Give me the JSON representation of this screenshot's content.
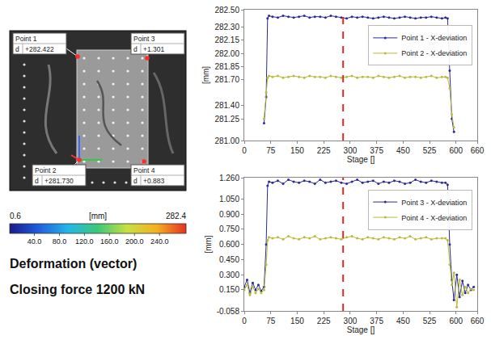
{
  "image": {
    "points": [
      {
        "name": "Point 1",
        "label": "d",
        "value": "+282.422"
      },
      {
        "name": "Point 2",
        "label": "d",
        "value": "+281.730"
      },
      {
        "name": "Point 3",
        "label": "d",
        "value": "+1.301"
      },
      {
        "name": "Point 4",
        "label": "d",
        "value": "+0.883"
      }
    ]
  },
  "colorbar": {
    "min": 0.6,
    "max": 282.4,
    "unit": "[mm]",
    "colors": [
      "#1a1a8c",
      "#1f5fe0",
      "#22b8e8",
      "#3cc878",
      "#c8e040",
      "#f5b020",
      "#e83020"
    ],
    "ticks": [
      {
        "value": 40,
        "label": "40.0"
      },
      {
        "value": 80,
        "label": "80.0"
      },
      {
        "value": 120,
        "label": "120.0"
      },
      {
        "value": 160,
        "label": "160.0"
      },
      {
        "value": 200,
        "label": "200.0"
      },
      {
        "value": 240,
        "label": "240.0"
      }
    ]
  },
  "captions": [
    "Deformation (vector)",
    "Closing force 1200 kN"
  ],
  "chart_data": [
    {
      "type": "line",
      "xlabel": "Stage []",
      "ylabel": "[mm]",
      "grid": false,
      "legend": "right",
      "x": [
        0,
        8,
        16,
        24,
        32,
        40,
        48,
        56,
        62,
        66,
        70,
        80,
        95,
        110,
        125,
        140,
        155,
        170,
        185,
        200,
        215,
        230,
        245,
        260,
        275,
        290,
        305,
        320,
        335,
        350,
        365,
        380,
        395,
        410,
        425,
        440,
        455,
        470,
        485,
        500,
        515,
        530,
        545,
        560,
        570,
        576,
        582,
        588,
        594,
        602,
        610,
        618,
        626,
        634,
        642,
        650
      ],
      "xlim": [
        0,
        660
      ],
      "xticks": [
        0,
        75,
        150,
        225,
        300,
        375,
        450,
        525,
        600,
        660
      ],
      "ylim": [
        281,
        282.5
      ],
      "yticks": [
        {
          "value": 281,
          "label": "281.00"
        },
        {
          "value": 281.25,
          "label": "281.25"
        },
        {
          "value": 281.4,
          "label": "281.40"
        },
        {
          "value": 281.7,
          "label": "281.70"
        },
        {
          "value": 281.85,
          "label": "281.85"
        },
        {
          "value": 282,
          "label": "282.00"
        },
        {
          "value": 282.15,
          "label": "282.15"
        },
        {
          "value": 282.3,
          "label": "282.30"
        },
        {
          "value": 282.5,
          "label": "282.50"
        }
      ],
      "vline": {
        "x": 280,
        "color": "#e8281e",
        "line_style": "dash"
      },
      "series": [
        {
          "name": "Point 1 - X-deviation",
          "color": "#2a2a9a",
          "marker": "circle",
          "values": [
            null,
            null,
            null,
            null,
            null,
            null,
            null,
            281.2,
            281.5,
            282.4,
            282.43,
            282.42,
            282.41,
            282.43,
            282.42,
            282.41,
            282.42,
            282.43,
            282.41,
            282.42,
            282.42,
            282.41,
            282.43,
            282.42,
            282.41,
            282.4,
            282.42,
            282.41,
            282.42,
            282.41,
            282.4,
            282.41,
            282.42,
            282.41,
            282.4,
            282.41,
            282.42,
            282.41,
            282.4,
            282.41,
            282.41,
            282.42,
            282.41,
            282.4,
            282.41,
            282.4,
            281.8,
            281.25,
            281.1,
            null,
            null,
            null,
            null,
            null,
            null,
            null
          ]
        },
        {
          "name": "Point 2 - X-deviation",
          "color": "#b9bc3a",
          "marker": "circle",
          "values": [
            null,
            null,
            null,
            null,
            null,
            null,
            null,
            281.25,
            281.55,
            281.72,
            281.74,
            281.73,
            281.74,
            281.72,
            281.73,
            281.74,
            281.73,
            281.72,
            281.74,
            281.73,
            281.73,
            281.72,
            281.74,
            281.73,
            281.72,
            281.73,
            281.74,
            281.72,
            281.73,
            281.73,
            281.72,
            281.74,
            281.73,
            281.72,
            281.73,
            281.74,
            281.72,
            281.73,
            281.73,
            281.72,
            281.73,
            281.74,
            281.72,
            281.73,
            281.73,
            281.72,
            281.6,
            281.3,
            281.15,
            null,
            null,
            null,
            null,
            null,
            null,
            null
          ]
        }
      ]
    },
    {
      "type": "line",
      "xlabel": "Stage []",
      "ylabel": "[mm]",
      "grid": false,
      "legend": "right",
      "x": [
        0,
        8,
        16,
        24,
        32,
        40,
        48,
        56,
        62,
        66,
        70,
        80,
        95,
        110,
        125,
        140,
        155,
        170,
        185,
        200,
        215,
        230,
        245,
        260,
        275,
        290,
        305,
        320,
        335,
        350,
        365,
        380,
        395,
        410,
        425,
        440,
        455,
        470,
        485,
        500,
        515,
        530,
        545,
        560,
        570,
        576,
        582,
        588,
        594,
        602,
        610,
        618,
        626,
        634,
        642,
        650
      ],
      "xlim": [
        0,
        660
      ],
      "xticks": [
        0,
        75,
        150,
        225,
        300,
        375,
        450,
        525,
        600,
        660
      ],
      "ylim": [
        -0.058,
        1.26
      ],
      "yticks": [
        {
          "value": -0.058,
          "label": "-0.058"
        },
        {
          "value": 0.15,
          "label": "0.150"
        },
        {
          "value": 0.3,
          "label": "0.300"
        },
        {
          "value": 0.45,
          "label": "0.450"
        },
        {
          "value": 0.6,
          "label": "0.600"
        },
        {
          "value": 0.75,
          "label": "0.750"
        },
        {
          "value": 0.9,
          "label": "0.900"
        },
        {
          "value": 1.05,
          "label": "1.050"
        },
        {
          "value": 1.26,
          "label": "1.260"
        }
      ],
      "vline": {
        "x": 280,
        "color": "#e8281e",
        "line_style": "dash"
      },
      "series": [
        {
          "name": "Point 3 - X-deviation",
          "color": "#2a2a9a",
          "marker": "circle",
          "values": [
            0.18,
            0.25,
            0.12,
            0.22,
            0.15,
            0.2,
            0.14,
            0.18,
            0.6,
            1.18,
            1.22,
            1.21,
            1.23,
            1.2,
            1.24,
            1.22,
            1.21,
            1.23,
            1.22,
            1.2,
            1.24,
            1.21,
            1.22,
            1.23,
            1.21,
            1.2,
            1.22,
            1.24,
            1.21,
            1.22,
            1.23,
            1.2,
            1.22,
            1.21,
            1.23,
            1.22,
            1.2,
            1.21,
            1.24,
            1.22,
            1.21,
            1.23,
            1.22,
            1.21,
            1.21,
            1.19,
            0.6,
            0.25,
            0.05,
            0.3,
            0.08,
            0.24,
            0.12,
            0.2,
            0.15,
            0.18
          ]
        },
        {
          "name": "Point 4 - X-deviation",
          "color": "#b9bc3a",
          "marker": "circle",
          "values": [
            0.15,
            0.2,
            0.1,
            0.18,
            0.12,
            0.16,
            0.12,
            0.15,
            0.4,
            0.64,
            0.67,
            0.66,
            0.67,
            0.65,
            0.68,
            0.66,
            0.65,
            0.67,
            0.66,
            0.68,
            0.65,
            0.66,
            0.67,
            0.66,
            0.65,
            0.67,
            0.68,
            0.66,
            0.65,
            0.67,
            0.66,
            0.65,
            0.67,
            0.66,
            0.65,
            0.67,
            0.66,
            0.68,
            0.65,
            0.66,
            0.67,
            0.65,
            0.66,
            0.66,
            0.66,
            0.64,
            0.4,
            0.2,
            0.32,
            -0.02,
            0.25,
            0.1,
            0.18,
            0.12,
            0.16,
            0.15
          ]
        }
      ]
    }
  ]
}
